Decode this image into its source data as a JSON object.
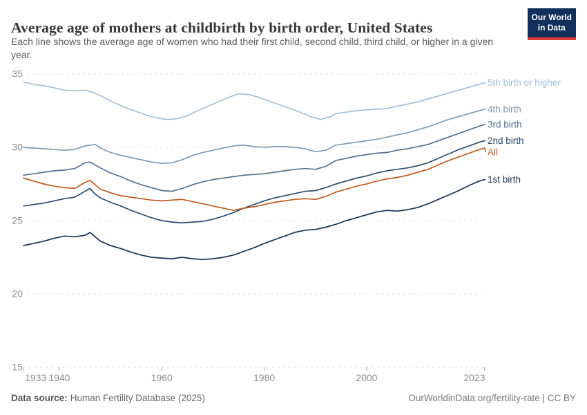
{
  "logo": {
    "line1": "Our World",
    "line2": "in Data",
    "bg_color": "#12305b",
    "stripe_color": "#dc3a32"
  },
  "chart_data": {
    "type": "line",
    "title": "Average age of mothers at childbirth by birth order, United States",
    "subtitle": "Each line shows the average age of women who had their first child, second child, third child, or higher in a given year.",
    "xlabel": "",
    "ylabel": "",
    "x_range": [
      1933,
      2023
    ],
    "y_range": [
      15,
      35
    ],
    "x_ticks": [
      1933,
      1940,
      1960,
      1980,
      2000,
      2023
    ],
    "y_ticks": [
      15,
      20,
      25,
      30,
      35
    ],
    "grid": "horizontal-dashed",
    "legend_position": "right-inline-labels",
    "axis_text_color": "#8b8b8b",
    "grid_color": "#dcdcdc",
    "tick_color": "#a8a8a8",
    "series": [
      {
        "id": "5th-birth-or-higher",
        "label": "5th birth or higher",
        "color": "#a4bed6",
        "points": [
          [
            1933,
            34.45
          ],
          [
            1935,
            34.3
          ],
          [
            1937,
            34.2
          ],
          [
            1939,
            34.05
          ],
          [
            1941,
            33.9
          ],
          [
            1943,
            33.85
          ],
          [
            1945,
            33.9
          ],
          [
            1947,
            33.7
          ],
          [
            1949,
            33.35
          ],
          [
            1951,
            33.0
          ],
          [
            1953,
            32.7
          ],
          [
            1955,
            32.45
          ],
          [
            1957,
            32.2
          ],
          [
            1959,
            32.0
          ],
          [
            1961,
            31.9
          ],
          [
            1963,
            31.95
          ],
          [
            1965,
            32.15
          ],
          [
            1967,
            32.5
          ],
          [
            1969,
            32.8
          ],
          [
            1971,
            33.1
          ],
          [
            1973,
            33.4
          ],
          [
            1975,
            33.65
          ],
          [
            1977,
            33.6
          ],
          [
            1979,
            33.4
          ],
          [
            1981,
            33.15
          ],
          [
            1983,
            32.9
          ],
          [
            1985,
            32.65
          ],
          [
            1987,
            32.4
          ],
          [
            1989,
            32.1
          ],
          [
            1991,
            31.9
          ],
          [
            1993,
            32.1
          ],
          [
            1994,
            32.3
          ],
          [
            1996,
            32.4
          ],
          [
            1998,
            32.5
          ],
          [
            2000,
            32.55
          ],
          [
            2002,
            32.6
          ],
          [
            2004,
            32.65
          ],
          [
            2006,
            32.8
          ],
          [
            2008,
            32.95
          ],
          [
            2010,
            33.1
          ],
          [
            2012,
            33.3
          ],
          [
            2014,
            33.5
          ],
          [
            2016,
            33.7
          ],
          [
            2018,
            33.9
          ],
          [
            2020,
            34.1
          ],
          [
            2022,
            34.3
          ],
          [
            2023,
            34.4
          ]
        ]
      },
      {
        "id": "4th-birth",
        "label": "4th birth",
        "color": "#7e9ab4",
        "points": [
          [
            1933,
            30.0
          ],
          [
            1935,
            29.95
          ],
          [
            1937,
            29.9
          ],
          [
            1939,
            29.85
          ],
          [
            1941,
            29.8
          ],
          [
            1943,
            29.85
          ],
          [
            1945,
            30.1
          ],
          [
            1947,
            30.2
          ],
          [
            1948,
            29.95
          ],
          [
            1950,
            29.65
          ],
          [
            1952,
            29.45
          ],
          [
            1954,
            29.3
          ],
          [
            1956,
            29.15
          ],
          [
            1958,
            29.0
          ],
          [
            1960,
            28.9
          ],
          [
            1962,
            28.95
          ],
          [
            1964,
            29.15
          ],
          [
            1966,
            29.45
          ],
          [
            1968,
            29.65
          ],
          [
            1970,
            29.8
          ],
          [
            1972,
            29.95
          ],
          [
            1974,
            30.1
          ],
          [
            1976,
            30.15
          ],
          [
            1978,
            30.05
          ],
          [
            1980,
            30.0
          ],
          [
            1982,
            30.05
          ],
          [
            1984,
            30.05
          ],
          [
            1986,
            30.0
          ],
          [
            1988,
            29.9
          ],
          [
            1990,
            29.7
          ],
          [
            1992,
            29.8
          ],
          [
            1994,
            30.15
          ],
          [
            1996,
            30.25
          ],
          [
            1998,
            30.35
          ],
          [
            2000,
            30.45
          ],
          [
            2002,
            30.55
          ],
          [
            2004,
            30.7
          ],
          [
            2006,
            30.85
          ],
          [
            2008,
            31.0
          ],
          [
            2010,
            31.2
          ],
          [
            2012,
            31.4
          ],
          [
            2014,
            31.65
          ],
          [
            2016,
            31.9
          ],
          [
            2018,
            32.1
          ],
          [
            2020,
            32.3
          ],
          [
            2022,
            32.5
          ],
          [
            2023,
            32.6
          ]
        ]
      },
      {
        "id": "3rd-birth",
        "label": "3rd birth",
        "color": "#53718f",
        "points": [
          [
            1933,
            28.1
          ],
          [
            1935,
            28.2
          ],
          [
            1937,
            28.3
          ],
          [
            1939,
            28.4
          ],
          [
            1941,
            28.45
          ],
          [
            1943,
            28.55
          ],
          [
            1945,
            28.95
          ],
          [
            1946,
            29.0
          ],
          [
            1947,
            28.8
          ],
          [
            1948,
            28.6
          ],
          [
            1950,
            28.25
          ],
          [
            1952,
            28.0
          ],
          [
            1954,
            27.7
          ],
          [
            1956,
            27.45
          ],
          [
            1958,
            27.25
          ],
          [
            1960,
            27.05
          ],
          [
            1962,
            27.0
          ],
          [
            1964,
            27.2
          ],
          [
            1966,
            27.45
          ],
          [
            1968,
            27.65
          ],
          [
            1970,
            27.8
          ],
          [
            1972,
            27.9
          ],
          [
            1974,
            28.0
          ],
          [
            1976,
            28.1
          ],
          [
            1978,
            28.15
          ],
          [
            1980,
            28.2
          ],
          [
            1982,
            28.3
          ],
          [
            1984,
            28.4
          ],
          [
            1986,
            28.5
          ],
          [
            1988,
            28.55
          ],
          [
            1990,
            28.5
          ],
          [
            1992,
            28.7
          ],
          [
            1994,
            29.1
          ],
          [
            1996,
            29.25
          ],
          [
            1998,
            29.4
          ],
          [
            2000,
            29.5
          ],
          [
            2002,
            29.6
          ],
          [
            2004,
            29.65
          ],
          [
            2006,
            29.8
          ],
          [
            2008,
            29.9
          ],
          [
            2010,
            30.05
          ],
          [
            2012,
            30.2
          ],
          [
            2014,
            30.45
          ],
          [
            2016,
            30.7
          ],
          [
            2018,
            30.95
          ],
          [
            2020,
            31.2
          ],
          [
            2022,
            31.45
          ],
          [
            2023,
            31.55
          ]
        ]
      },
      {
        "id": "2nd-birth",
        "label": "2nd birth",
        "color": "#2b4c6f",
        "points": [
          [
            1933,
            26.0
          ],
          [
            1935,
            26.1
          ],
          [
            1937,
            26.2
          ],
          [
            1939,
            26.35
          ],
          [
            1941,
            26.5
          ],
          [
            1943,
            26.6
          ],
          [
            1945,
            27.0
          ],
          [
            1946,
            27.2
          ],
          [
            1947,
            26.8
          ],
          [
            1948,
            26.55
          ],
          [
            1950,
            26.25
          ],
          [
            1952,
            26.0
          ],
          [
            1954,
            25.7
          ],
          [
            1956,
            25.45
          ],
          [
            1958,
            25.2
          ],
          [
            1960,
            25.0
          ],
          [
            1962,
            24.9
          ],
          [
            1964,
            24.85
          ],
          [
            1966,
            24.9
          ],
          [
            1968,
            24.95
          ],
          [
            1970,
            25.1
          ],
          [
            1972,
            25.3
          ],
          [
            1974,
            25.55
          ],
          [
            1976,
            25.85
          ],
          [
            1978,
            26.1
          ],
          [
            1980,
            26.35
          ],
          [
            1982,
            26.55
          ],
          [
            1984,
            26.7
          ],
          [
            1986,
            26.85
          ],
          [
            1988,
            27.0
          ],
          [
            1990,
            27.05
          ],
          [
            1992,
            27.25
          ],
          [
            1994,
            27.5
          ],
          [
            1996,
            27.7
          ],
          [
            1998,
            27.9
          ],
          [
            2000,
            28.05
          ],
          [
            2002,
            28.25
          ],
          [
            2004,
            28.4
          ],
          [
            2006,
            28.5
          ],
          [
            2008,
            28.6
          ],
          [
            2010,
            28.75
          ],
          [
            2012,
            28.95
          ],
          [
            2014,
            29.25
          ],
          [
            2016,
            29.55
          ],
          [
            2018,
            29.85
          ],
          [
            2020,
            30.1
          ],
          [
            2022,
            30.35
          ],
          [
            2023,
            30.45
          ]
        ]
      },
      {
        "id": "all",
        "label": "All",
        "color": "#c05a1d",
        "points": [
          [
            1933,
            27.9
          ],
          [
            1935,
            27.7
          ],
          [
            1937,
            27.5
          ],
          [
            1939,
            27.35
          ],
          [
            1941,
            27.25
          ],
          [
            1943,
            27.2
          ],
          [
            1945,
            27.6
          ],
          [
            1946,
            27.75
          ],
          [
            1947,
            27.45
          ],
          [
            1948,
            27.15
          ],
          [
            1950,
            26.9
          ],
          [
            1952,
            26.7
          ],
          [
            1954,
            26.6
          ],
          [
            1956,
            26.5
          ],
          [
            1958,
            26.4
          ],
          [
            1960,
            26.35
          ],
          [
            1962,
            26.4
          ],
          [
            1964,
            26.45
          ],
          [
            1966,
            26.3
          ],
          [
            1968,
            26.15
          ],
          [
            1970,
            26.0
          ],
          [
            1972,
            25.85
          ],
          [
            1974,
            25.7
          ],
          [
            1976,
            25.85
          ],
          [
            1978,
            25.95
          ],
          [
            1980,
            26.1
          ],
          [
            1982,
            26.25
          ],
          [
            1984,
            26.35
          ],
          [
            1986,
            26.45
          ],
          [
            1988,
            26.5
          ],
          [
            1990,
            26.45
          ],
          [
            1992,
            26.65
          ],
          [
            1994,
            26.95
          ],
          [
            1996,
            27.15
          ],
          [
            1998,
            27.35
          ],
          [
            2000,
            27.5
          ],
          [
            2002,
            27.7
          ],
          [
            2004,
            27.85
          ],
          [
            2006,
            27.95
          ],
          [
            2008,
            28.1
          ],
          [
            2010,
            28.3
          ],
          [
            2012,
            28.5
          ],
          [
            2014,
            28.8
          ],
          [
            2016,
            29.1
          ],
          [
            2018,
            29.35
          ],
          [
            2020,
            29.6
          ],
          [
            2022,
            29.85
          ],
          [
            2023,
            29.95
          ]
        ]
      },
      {
        "id": "1st-birth",
        "label": "1st birth",
        "color": "#16304e",
        "points": [
          [
            1933,
            23.3
          ],
          [
            1935,
            23.45
          ],
          [
            1937,
            23.6
          ],
          [
            1939,
            23.8
          ],
          [
            1941,
            23.95
          ],
          [
            1943,
            23.9
          ],
          [
            1945,
            24.0
          ],
          [
            1946,
            24.2
          ],
          [
            1947,
            23.9
          ],
          [
            1948,
            23.6
          ],
          [
            1950,
            23.3
          ],
          [
            1952,
            23.1
          ],
          [
            1954,
            22.85
          ],
          [
            1956,
            22.65
          ],
          [
            1958,
            22.5
          ],
          [
            1960,
            22.45
          ],
          [
            1962,
            22.4
          ],
          [
            1964,
            22.5
          ],
          [
            1966,
            22.4
          ],
          [
            1968,
            22.35
          ],
          [
            1970,
            22.4
          ],
          [
            1972,
            22.5
          ],
          [
            1974,
            22.65
          ],
          [
            1976,
            22.9
          ],
          [
            1978,
            23.15
          ],
          [
            1980,
            23.45
          ],
          [
            1982,
            23.7
          ],
          [
            1984,
            23.95
          ],
          [
            1986,
            24.2
          ],
          [
            1988,
            24.35
          ],
          [
            1990,
            24.4
          ],
          [
            1992,
            24.55
          ],
          [
            1994,
            24.75
          ],
          [
            1996,
            25.0
          ],
          [
            1998,
            25.2
          ],
          [
            2000,
            25.4
          ],
          [
            2002,
            25.6
          ],
          [
            2004,
            25.7
          ],
          [
            2006,
            25.65
          ],
          [
            2008,
            25.75
          ],
          [
            2010,
            25.9
          ],
          [
            2012,
            26.15
          ],
          [
            2014,
            26.45
          ],
          [
            2016,
            26.75
          ],
          [
            2018,
            27.05
          ],
          [
            2020,
            27.4
          ],
          [
            2022,
            27.7
          ],
          [
            2023,
            27.8
          ]
        ]
      }
    ]
  },
  "footer": {
    "source_label": "Data source:",
    "source_value": "Human Fertility Database (2025)",
    "credit": "OurWorldinData.org/fertility-rate | CC BY"
  }
}
